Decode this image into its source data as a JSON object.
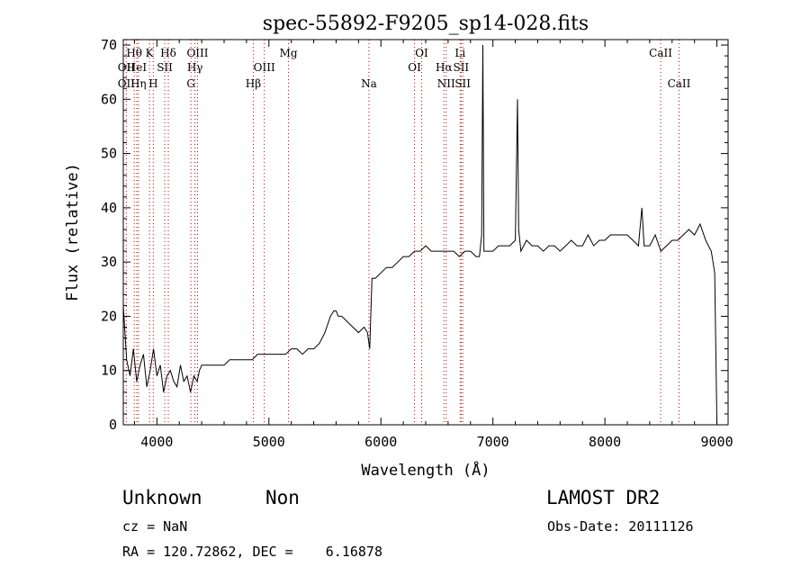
{
  "chart_data": {
    "type": "line",
    "title": "spec-55892-F9205_sp14-028.fits",
    "xlabel": "Wavelength (Å)",
    "ylabel": "Flux (relative)",
    "xlim": [
      3700,
      9100
    ],
    "ylim": [
      0,
      71
    ],
    "x_ticks": [
      4000,
      5000,
      6000,
      7000,
      8000,
      9000
    ],
    "x_tick_labels": [
      "4000",
      "5000",
      "6000",
      "7000",
      "8000",
      "9000"
    ],
    "y_ticks": [
      0,
      10,
      20,
      30,
      40,
      50,
      60,
      70
    ],
    "y_tick_labels": [
      "0",
      "10",
      "20",
      "30",
      "40",
      "50",
      "60",
      "70"
    ],
    "grid": false,
    "line_color": "#000000",
    "marker_color": "#c00000",
    "spectrum": {
      "x": [
        3700,
        3730,
        3760,
        3790,
        3820,
        3850,
        3880,
        3910,
        3940,
        3970,
        4000,
        4030,
        4060,
        4090,
        4120,
        4150,
        4180,
        4210,
        4240,
        4270,
        4300,
        4330,
        4360,
        4380,
        4400,
        4450,
        4500,
        4550,
        4600,
        4650,
        4700,
        4750,
        4800,
        4850,
        4900,
        4950,
        5000,
        5050,
        5100,
        5150,
        5200,
        5250,
        5300,
        5350,
        5400,
        5450,
        5500,
        5550,
        5580,
        5600,
        5620,
        5650,
        5700,
        5750,
        5800,
        5850,
        5880,
        5900,
        5920,
        5950,
        6000,
        6050,
        6100,
        6150,
        6200,
        6250,
        6300,
        6350,
        6400,
        6450,
        6500,
        6550,
        6600,
        6650,
        6700,
        6750,
        6800,
        6850,
        6880,
        6900,
        6910,
        6920,
        6950,
        7000,
        7050,
        7100,
        7150,
        7200,
        7220,
        7230,
        7250,
        7300,
        7350,
        7400,
        7450,
        7500,
        7550,
        7600,
        7650,
        7700,
        7750,
        7800,
        7850,
        7900,
        7950,
        8000,
        8050,
        8100,
        8150,
        8200,
        8250,
        8300,
        8330,
        8350,
        8400,
        8450,
        8500,
        8550,
        8600,
        8650,
        8700,
        8750,
        8800,
        8850,
        8900,
        8950,
        8980,
        9000
      ],
      "y": [
        22,
        12,
        9,
        14,
        8,
        11,
        13,
        7,
        10,
        14,
        9,
        11,
        6,
        9,
        10,
        8,
        7,
        11,
        8,
        9,
        6,
        9,
        8,
        10,
        11,
        11,
        11,
        11,
        11,
        12,
        12,
        12,
        12,
        12,
        13,
        13,
        13,
        13,
        13,
        13,
        14,
        14,
        13,
        14,
        14,
        15,
        17,
        20,
        21,
        21,
        20,
        20,
        19,
        18,
        17,
        18,
        17,
        14,
        27,
        27,
        28,
        29,
        29,
        30,
        31,
        31,
        32,
        32,
        33,
        32,
        32,
        32,
        32,
        32,
        31,
        32,
        32,
        31,
        31,
        35,
        70,
        32,
        32,
        32,
        33,
        33,
        33,
        34,
        60,
        36,
        32,
        34,
        33,
        33,
        32,
        33,
        33,
        32,
        33,
        34,
        33,
        33,
        35,
        33,
        34,
        34,
        35,
        35,
        35,
        35,
        34,
        33,
        40,
        33,
        33,
        35,
        32,
        33,
        34,
        34,
        35,
        36,
        35,
        37,
        34,
        32,
        28,
        0
      ]
    },
    "line_markers": [
      {
        "label": "Hθ",
        "x": 3798,
        "row": 1
      },
      {
        "label": "OII",
        "x": 3727,
        "row": 2
      },
      {
        "label": "OII",
        "x": 3727,
        "row": 3
      },
      {
        "label": "HeI",
        "x": 3820,
        "row": 2
      },
      {
        "label": "Hη",
        "x": 3835,
        "row": 3
      },
      {
        "label": "K",
        "x": 3934,
        "row": 1
      },
      {
        "label": "SII",
        "x": 4070,
        "row": 2
      },
      {
        "label": "H",
        "x": 3968,
        "row": 3
      },
      {
        "label": "Hδ",
        "x": 4102,
        "row": 1
      },
      {
        "label": "OIII",
        "x": 4363,
        "row": 1
      },
      {
        "label": "Hγ",
        "x": 4340,
        "row": 2
      },
      {
        "label": "G",
        "x": 4304,
        "row": 3
      },
      {
        "label": "OIII",
        "x": 4959,
        "row": 2
      },
      {
        "label": "Hβ",
        "x": 4861,
        "row": 3
      },
      {
        "label": "Mg",
        "x": 5175,
        "row": 1
      },
      {
        "label": "Na",
        "x": 5893,
        "row": 3
      },
      {
        "label": "OI",
        "x": 6364,
        "row": 1
      },
      {
        "label": "OI",
        "x": 6300,
        "row": 2
      },
      {
        "label": "Li",
        "x": 6708,
        "row": 1
      },
      {
        "label": "Hα",
        "x": 6563,
        "row": 2
      },
      {
        "label": "SII",
        "x": 6716,
        "row": 2
      },
      {
        "label": "NII",
        "x": 6583,
        "row": 3
      },
      {
        "label": "SII",
        "x": 6731,
        "row": 3
      },
      {
        "label": "CaII",
        "x": 8498,
        "row": 1
      },
      {
        "label": "CaII",
        "x": 8662,
        "row": 3
      }
    ]
  },
  "info": {
    "class": "Unknown",
    "subclass": "Non",
    "survey": "LAMOST DR2",
    "cz": "cz = NaN",
    "obs_date": "Obs-Date: 20111126",
    "coords": "RA = 120.72862, DEC =    6.16878"
  }
}
